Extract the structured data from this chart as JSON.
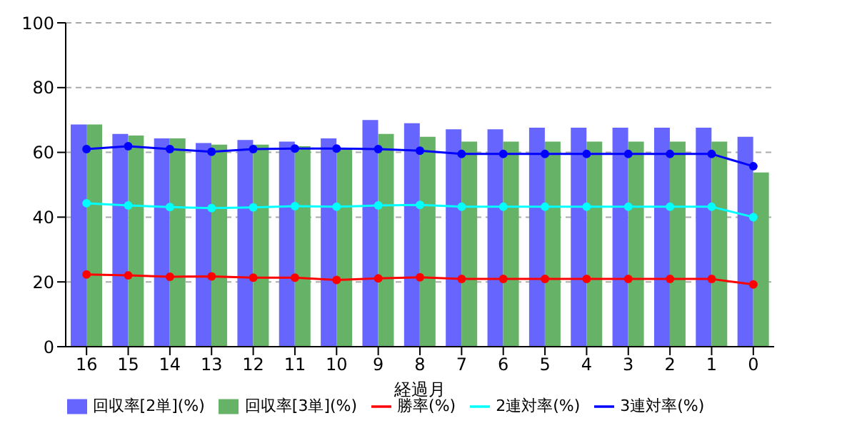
{
  "chart_data": {
    "type": "bar",
    "xlabel": "経過月",
    "categories": [
      "16",
      "15",
      "14",
      "13",
      "12",
      "11",
      "10",
      "9",
      "8",
      "7",
      "6",
      "5",
      "4",
      "3",
      "2",
      "1",
      "0"
    ],
    "series": [
      {
        "name": "回収率[2単](%)",
        "color": "#6666ff",
        "values": [
          68.6,
          65.7,
          64.3,
          62.9,
          63.8,
          63.3,
          64.3,
          70,
          69,
          67.1,
          67.1,
          67.6,
          67.6,
          67.6,
          67.6,
          67.6,
          64.8
        ]
      },
      {
        "name": "回収率[3単](%)",
        "color": "#66b266",
        "values": [
          68.6,
          65.2,
          64.3,
          62.4,
          62.4,
          61.9,
          61.4,
          65.7,
          64.8,
          63.3,
          63.3,
          63.3,
          63.3,
          63.3,
          63.3,
          63.3,
          53.8
        ]
      },
      {
        "name": "勝率(%)",
        "type": "line",
        "color": "#ff0000",
        "values": [
          22.3,
          22,
          21.6,
          21.7,
          21.3,
          21.3,
          20.6,
          21.1,
          21.4,
          20.9,
          20.9,
          20.9,
          20.9,
          20.9,
          20.9,
          20.9,
          19.2
        ]
      },
      {
        "name": "2連対率(%)",
        "type": "line",
        "color": "#00ffff",
        "values": [
          44.3,
          43.6,
          43.1,
          42.8,
          43,
          43.4,
          43.2,
          43.6,
          43.8,
          43.2,
          43.2,
          43.2,
          43.2,
          43.2,
          43.2,
          43.2,
          40
        ]
      },
      {
        "name": "3連対率(%)",
        "type": "line",
        "color": "#0000ff",
        "values": [
          61,
          61.9,
          61,
          60.2,
          61,
          61.2,
          61.2,
          61,
          60.5,
          59.5,
          59.5,
          59.5,
          59.5,
          59.5,
          59.5,
          59.5,
          55.7
        ]
      }
    ],
    "ylim": [
      0,
      100
    ],
    "yticks": [
      0,
      20,
      40,
      60,
      80,
      100
    ],
    "grid": "y",
    "legend": "bottom",
    "marker": "circle"
  }
}
